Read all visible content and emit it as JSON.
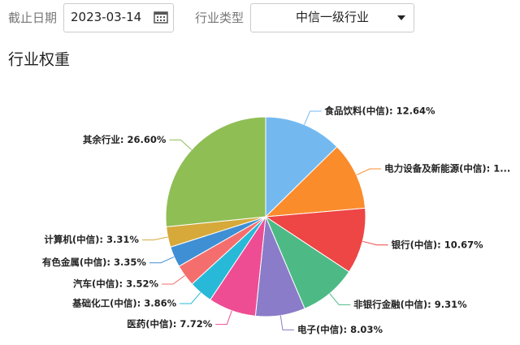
{
  "controls": {
    "date_label": "截止日期",
    "date_value": "2023-03-14",
    "industry_label": "行业类型",
    "industry_value": "中信一级行业"
  },
  "chart_data": {
    "type": "pie",
    "title": "行业权重",
    "values": [
      12.64,
      10.99,
      10.67,
      9.31,
      8.03,
      7.72,
      3.86,
      3.52,
      3.35,
      3.31,
      26.6
    ],
    "value_labels": [
      "食品饮料(中信): 12.64%",
      "电力设备及新能源(中信): 1...",
      "银行(中信): 10.67%",
      "非银行金融(中信): 9.31%",
      "电子(中信): 8.03%",
      "医药(中信): 7.72%",
      "基础化工(中信): 3.86%",
      "汽车(中信): 3.52%",
      "有色金属(中信): 3.35%",
      "计算机(中信): 3.31%",
      "其余行业: 26.60%"
    ],
    "colors": [
      "#73b9f0",
      "#fb8c2c",
      "#ee4545",
      "#4dba85",
      "#8a7cc8",
      "#ee4d93",
      "#29b9d8",
      "#f46e6e",
      "#3f8fd4",
      "#d6a93a",
      "#8fbe55"
    ]
  }
}
